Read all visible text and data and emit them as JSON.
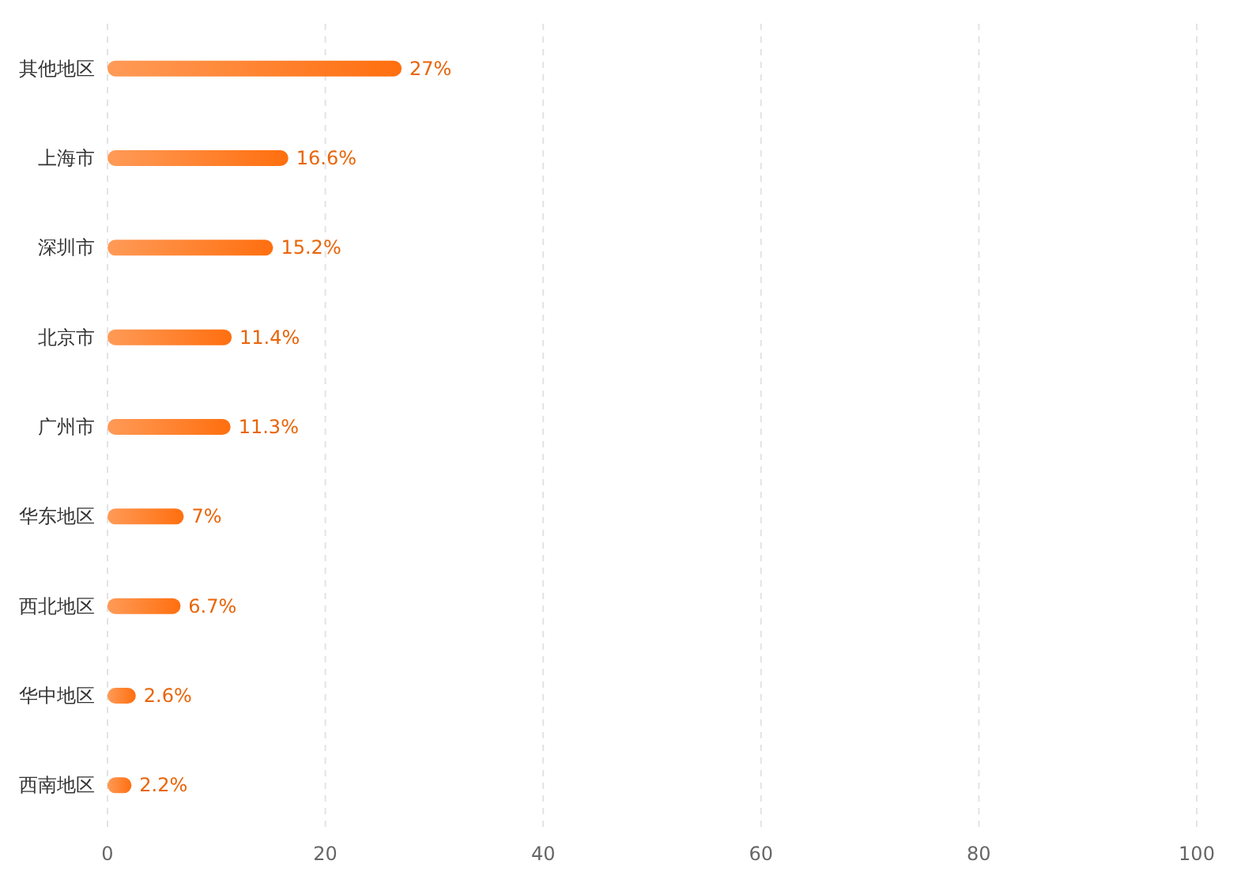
{
  "chart_data": {
    "type": "bar",
    "orientation": "horizontal",
    "categories": [
      "其他地区",
      "上海市",
      "深圳市",
      "北京市",
      "广州市",
      "华东地区",
      "西北地区",
      "华中地区",
      "西南地区"
    ],
    "values": [
      27,
      16.6,
      15.2,
      11.4,
      11.3,
      7,
      6.7,
      2.6,
      2.2
    ],
    "value_labels": [
      "27%",
      "16.6%",
      "15.2%",
      "11.4%",
      "11.3%",
      "7%",
      "6.7%",
      "2.6%",
      "2.2%"
    ],
    "color": "#ff6f0f",
    "xlim": [
      0,
      100
    ],
    "xticks": [
      0,
      20,
      40,
      60,
      80,
      100
    ],
    "grid": "x"
  }
}
